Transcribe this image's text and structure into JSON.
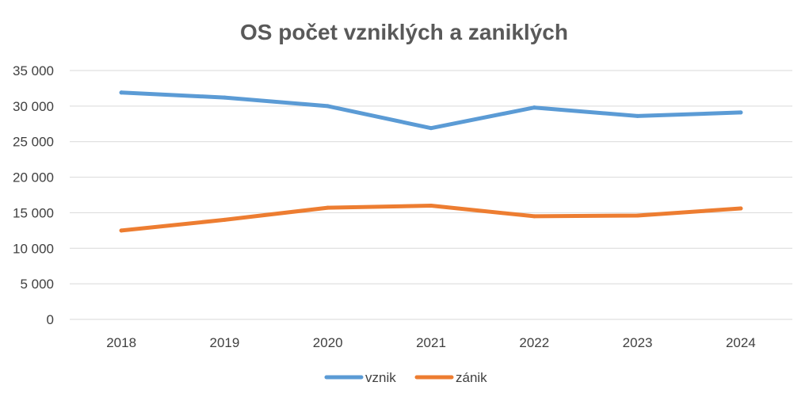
{
  "chart_data": {
    "type": "line",
    "title": "OS počet vzniklých a zaniklých",
    "xlabel": "",
    "ylabel": "",
    "categories": [
      "2018",
      "2019",
      "2020",
      "2021",
      "2022",
      "2023",
      "2024"
    ],
    "ylim": [
      0,
      35000
    ],
    "y_ticks": [
      0,
      5000,
      10000,
      15000,
      20000,
      25000,
      30000,
      35000
    ],
    "y_tick_labels": [
      "0",
      "5 000",
      "10 000",
      "15 000",
      "20 000",
      "25 000",
      "30 000",
      "35 000"
    ],
    "grid": true,
    "legend_position": "bottom",
    "series": [
      {
        "name": "vznik",
        "color": "#5b9bd5",
        "values": [
          31900,
          31200,
          30000,
          26900,
          29800,
          28600,
          29100
        ]
      },
      {
        "name": "zánik",
        "color": "#ed7d31",
        "values": [
          12500,
          14000,
          15700,
          16000,
          14500,
          14600,
          15600
        ]
      }
    ]
  }
}
